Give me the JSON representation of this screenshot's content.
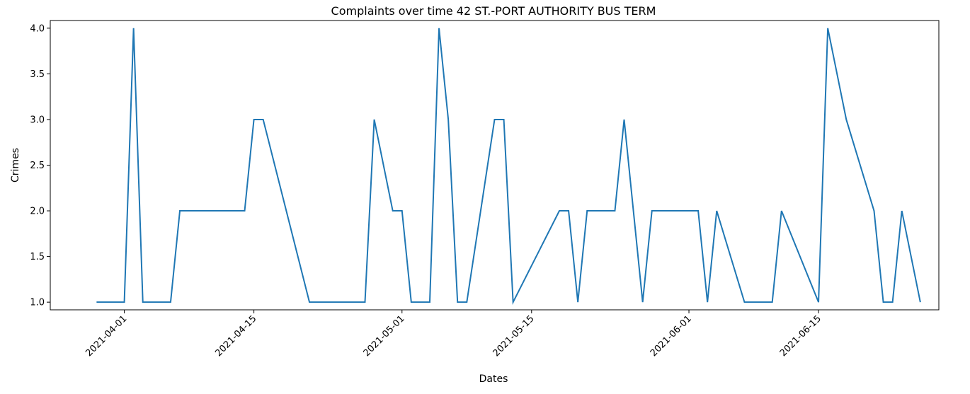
{
  "chart_data": {
    "type": "line",
    "title": "Complaints over time 42 ST.-PORT AUTHORITY BUS TERM",
    "xlabel": "Dates",
    "ylabel": "Crimes",
    "ylim": [
      0.916,
      4.084
    ],
    "xlim": [
      "2021-03-24",
      "2021-06-28"
    ],
    "x_ticks": [
      "2021-04-01",
      "2021-04-15",
      "2021-05-01",
      "2021-05-15",
      "2021-06-01",
      "2021-06-15"
    ],
    "y_ticks": [
      "1.0",
      "1.5",
      "2.0",
      "2.5",
      "3.0",
      "3.5",
      "4.0"
    ],
    "grid": false,
    "line_color": "#1f77b4",
    "series": [
      {
        "x": [
          "2021-03-29",
          "2021-04-01",
          "2021-04-02",
          "2021-04-03",
          "2021-04-06",
          "2021-04-07",
          "2021-04-14",
          "2021-04-15",
          "2021-04-16",
          "2021-04-21",
          "2021-04-27",
          "2021-04-28",
          "2021-04-30",
          "2021-05-01",
          "2021-05-02",
          "2021-05-04",
          "2021-05-05",
          "2021-05-06",
          "2021-05-07",
          "2021-05-08",
          "2021-05-11",
          "2021-05-12",
          "2021-05-13",
          "2021-05-18",
          "2021-05-19",
          "2021-05-20",
          "2021-05-21",
          "2021-05-24",
          "2021-05-25",
          "2021-05-27",
          "2021-05-28",
          "2021-06-02",
          "2021-06-03",
          "2021-06-04",
          "2021-06-07",
          "2021-06-10",
          "2021-06-11",
          "2021-06-15",
          "2021-06-16",
          "2021-06-18",
          "2021-06-21",
          "2021-06-22",
          "2021-06-23",
          "2021-06-24",
          "2021-06-26"
        ],
        "values": [
          1,
          1,
          4,
          1,
          1,
          2,
          2,
          3,
          3,
          1,
          1,
          3,
          2,
          2,
          1,
          1,
          4,
          3,
          1,
          1,
          3,
          3,
          1,
          2,
          2,
          1,
          2,
          2,
          3,
          1,
          2,
          2,
          1,
          2,
          1,
          1,
          2,
          1,
          4,
          3,
          2,
          1,
          1,
          2,
          1
        ]
      }
    ]
  }
}
